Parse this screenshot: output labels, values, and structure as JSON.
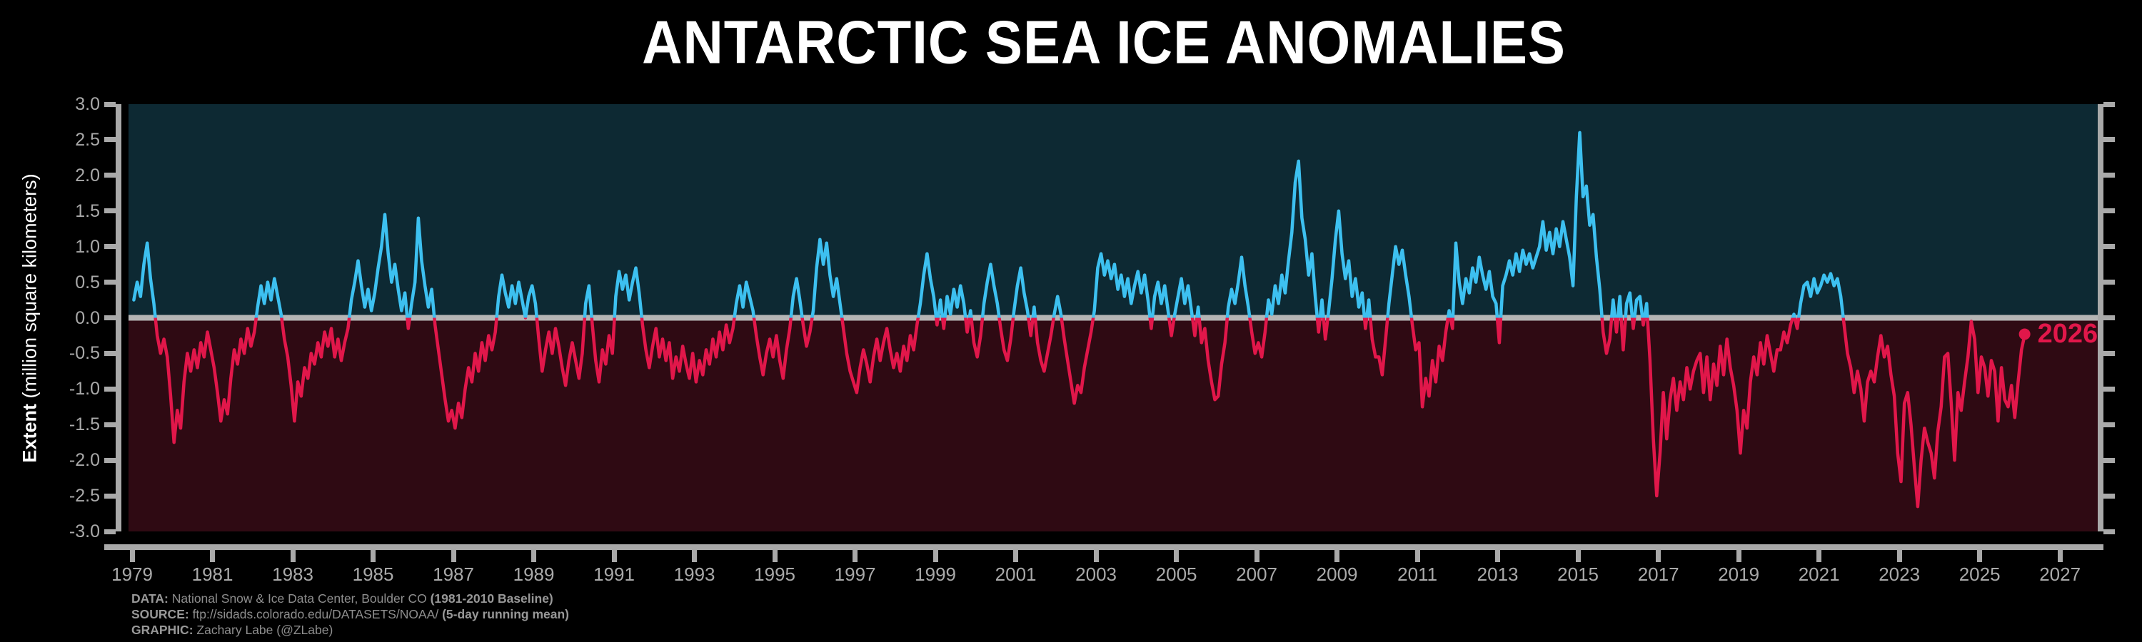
{
  "title": "ANTARCTIC SEA ICE ANOMALIES",
  "y_axis": {
    "label_bold": "Extent",
    "label_rest": " (million square kilometers)",
    "ticks": [
      "3.0",
      "2.5",
      "2.0",
      "1.5",
      "1.0",
      "0.5",
      "0.0",
      "-0.5",
      "-1.0",
      "-1.5",
      "-2.0",
      "-2.5",
      "-3.0"
    ]
  },
  "x_axis": {
    "ticks": [
      "1979",
      "1981",
      "1983",
      "1985",
      "1987",
      "1989",
      "1991",
      "1993",
      "1995",
      "1997",
      "1999",
      "2001",
      "2003",
      "2005",
      "2007",
      "2009",
      "2011",
      "2013",
      "2015",
      "2017",
      "2019",
      "2021",
      "2023",
      "2025",
      "2027"
    ]
  },
  "footer": {
    "lines": [
      {
        "label": "DATA:",
        "text": " National Snow & Ice Data Center, Boulder CO ",
        "bold_suffix": "(1981-2010 Baseline)"
      },
      {
        "label": "SOURCE:",
        "text": " ftp://sidads.colorado.edu/DATASETS/NOAA/ ",
        "bold_suffix": "(5-day running mean)"
      },
      {
        "label": "GRAPHIC:",
        "text": " Zachary Labe (@ZLabe)",
        "bold_suffix": ""
      }
    ]
  },
  "colors": {
    "background": "#000000",
    "positive_line": "#3DC0F0",
    "negative_line": "#E1174A",
    "positive_fill": "#0D2933",
    "negative_fill": "#2F0A13",
    "zero_line": "#B5B5B5",
    "axis": "#A9A9A9",
    "tick_label": "#A9A9A9",
    "title": "#FFFFFF",
    "footer_text": "#8E8E8E"
  },
  "chart_data": {
    "type": "line",
    "title": "ANTARCTIC SEA ICE ANOMALIES",
    "xlabel": "",
    "ylabel": "Extent (million square kilometers)",
    "ylim": [
      -3.0,
      3.0
    ],
    "xlim": [
      1978.91,
      2027.94
    ],
    "grid": false,
    "legend": "none",
    "series_name": "Antarctic sea ice extent anomaly, 5-day running mean (million sq km)",
    "x_unit": "decimal year, monthly estimates",
    "monthly_values_by_year": [
      {
        "year": 1979,
        "values": [
          0.25,
          0.5,
          0.3,
          0.75,
          1.05,
          0.55,
          0.2,
          -0.25,
          -0.5,
          -0.3,
          -0.55,
          -1.1
        ]
      },
      {
        "year": 1980,
        "values": [
          -1.75,
          -1.3,
          -1.55,
          -0.9,
          -0.5,
          -0.75,
          -0.45,
          -0.7,
          -0.35,
          -0.55,
          -0.2,
          -0.45
        ]
      },
      {
        "year": 1981,
        "values": [
          -0.7,
          -1.05,
          -1.45,
          -1.15,
          -1.35,
          -0.85,
          -0.45,
          -0.65,
          -0.3,
          -0.5,
          -0.15,
          -0.4
        ]
      },
      {
        "year": 1982,
        "values": [
          -0.2,
          0.15,
          0.45,
          0.2,
          0.5,
          0.25,
          0.55,
          0.3,
          0.05,
          -0.3,
          -0.55,
          -0.95
        ]
      },
      {
        "year": 1983,
        "values": [
          -1.45,
          -0.9,
          -1.1,
          -0.7,
          -0.85,
          -0.5,
          -0.65,
          -0.35,
          -0.55,
          -0.2,
          -0.4,
          -0.15
        ]
      },
      {
        "year": 1984,
        "values": [
          -0.55,
          -0.3,
          -0.6,
          -0.35,
          -0.15,
          0.25,
          0.5,
          0.8,
          0.45,
          0.15,
          0.4,
          0.1
        ]
      },
      {
        "year": 1985,
        "values": [
          0.35,
          0.7,
          1.0,
          1.45,
          0.9,
          0.5,
          0.75,
          0.4,
          0.1,
          0.35,
          -0.15,
          0.2
        ]
      },
      {
        "year": 1986,
        "values": [
          0.5,
          1.4,
          0.8,
          0.45,
          0.15,
          0.4,
          -0.1,
          -0.45,
          -0.8,
          -1.15,
          -1.45,
          -1.3
        ]
      },
      {
        "year": 1987,
        "values": [
          -1.55,
          -1.2,
          -1.4,
          -1.0,
          -0.7,
          -0.9,
          -0.5,
          -0.75,
          -0.35,
          -0.6,
          -0.25,
          -0.45
        ]
      },
      {
        "year": 1988,
        "values": [
          -0.2,
          0.3,
          0.6,
          0.35,
          0.15,
          0.45,
          0.2,
          0.5,
          0.25,
          0.0,
          0.3,
          0.45
        ]
      },
      {
        "year": 1989,
        "values": [
          0.2,
          -0.3,
          -0.75,
          -0.45,
          -0.2,
          -0.5,
          -0.15,
          -0.4,
          -0.7,
          -0.95,
          -0.6,
          -0.35
        ]
      },
      {
        "year": 1990,
        "values": [
          -0.6,
          -0.85,
          -0.5,
          0.2,
          0.45,
          -0.1,
          -0.6,
          -0.9,
          -0.45,
          -0.65,
          -0.25,
          -0.5
        ]
      },
      {
        "year": 1991,
        "values": [
          0.3,
          0.65,
          0.4,
          0.6,
          0.25,
          0.5,
          0.7,
          0.35,
          -0.1,
          -0.45,
          -0.7,
          -0.4
        ]
      },
      {
        "year": 1992,
        "values": [
          -0.15,
          -0.55,
          -0.3,
          -0.6,
          -0.35,
          -0.85,
          -0.55,
          -0.75,
          -0.4,
          -0.65,
          -0.85,
          -0.5
        ]
      },
      {
        "year": 1993,
        "values": [
          -0.9,
          -0.6,
          -0.8,
          -0.45,
          -0.65,
          -0.3,
          -0.55,
          -0.2,
          -0.45,
          -0.1,
          -0.35,
          -0.15
        ]
      },
      {
        "year": 1994,
        "values": [
          0.2,
          0.45,
          0.15,
          0.5,
          0.3,
          0.1,
          -0.25,
          -0.55,
          -0.8,
          -0.5,
          -0.3,
          -0.55
        ]
      },
      {
        "year": 1995,
        "values": [
          -0.25,
          -0.6,
          -0.85,
          -0.45,
          -0.15,
          0.3,
          0.55,
          0.25,
          -0.1,
          -0.4,
          -0.2,
          0.1
        ]
      },
      {
        "year": 1996,
        "values": [
          0.7,
          1.1,
          0.75,
          1.05,
          0.6,
          0.3,
          0.55,
          0.2,
          -0.15,
          -0.5,
          -0.75,
          -0.9
        ]
      },
      {
        "year": 1997,
        "values": [
          -1.05,
          -0.7,
          -0.45,
          -0.65,
          -0.9,
          -0.55,
          -0.3,
          -0.6,
          -0.35,
          -0.15,
          -0.45,
          -0.7
        ]
      },
      {
        "year": 1998,
        "values": [
          -0.5,
          -0.75,
          -0.4,
          -0.6,
          -0.25,
          -0.45,
          -0.1,
          0.2,
          0.6,
          0.9,
          0.55,
          0.3
        ]
      },
      {
        "year": 1999,
        "values": [
          -0.1,
          0.25,
          -0.15,
          0.3,
          0.05,
          0.4,
          0.15,
          0.45,
          0.2,
          -0.2,
          0.1,
          -0.35
        ]
      },
      {
        "year": 2000,
        "values": [
          -0.55,
          -0.25,
          0.2,
          0.5,
          0.75,
          0.45,
          0.2,
          -0.15,
          -0.45,
          -0.6,
          -0.3,
          0.1
        ]
      },
      {
        "year": 2001,
        "values": [
          0.45,
          0.7,
          0.35,
          0.1,
          -0.25,
          0.15,
          -0.35,
          -0.6,
          -0.75,
          -0.5,
          -0.25,
          0.05
        ]
      },
      {
        "year": 2002,
        "values": [
          0.3,
          0.05,
          -0.3,
          -0.6,
          -0.9,
          -1.2,
          -0.95,
          -1.05,
          -0.7,
          -0.45,
          -0.2,
          0.1
        ]
      },
      {
        "year": 2003,
        "values": [
          0.7,
          0.9,
          0.6,
          0.8,
          0.55,
          0.75,
          0.4,
          0.6,
          0.3,
          0.55,
          0.2,
          0.45
        ]
      },
      {
        "year": 2004,
        "values": [
          0.65,
          0.35,
          0.6,
          0.25,
          -0.15,
          0.3,
          0.5,
          0.2,
          0.45,
          0.1,
          -0.25,
          0.05
        ]
      },
      {
        "year": 2005,
        "values": [
          0.3,
          0.55,
          0.2,
          0.45,
          0.1,
          -0.25,
          0.15,
          -0.35,
          -0.15,
          -0.6,
          -0.9,
          -1.15
        ]
      },
      {
        "year": 2006,
        "values": [
          -1.1,
          -0.65,
          -0.35,
          0.15,
          0.4,
          0.2,
          0.5,
          0.85,
          0.45,
          0.15,
          -0.2,
          -0.5
        ]
      },
      {
        "year": 2007,
        "values": [
          -0.35,
          -0.55,
          -0.2,
          0.25,
          0.05,
          0.45,
          0.2,
          0.6,
          0.35,
          0.8,
          1.2,
          1.9
        ]
      },
      {
        "year": 2008,
        "values": [
          2.2,
          1.4,
          1.1,
          0.6,
          0.9,
          0.3,
          -0.2,
          0.25,
          -0.3,
          0.1,
          0.55,
          1.1
        ]
      },
      {
        "year": 2009,
        "values": [
          1.5,
          0.9,
          0.55,
          0.8,
          0.3,
          0.55,
          0.15,
          0.35,
          -0.15,
          0.25,
          -0.3,
          -0.55
        ]
      },
      {
        "year": 2010,
        "values": [
          -0.55,
          -0.8,
          -0.3,
          0.2,
          0.6,
          1.0,
          0.75,
          0.95,
          0.6,
          0.3,
          -0.1,
          -0.45
        ]
      },
      {
        "year": 2011,
        "values": [
          -0.35,
          -1.25,
          -0.85,
          -1.1,
          -0.6,
          -0.9,
          -0.4,
          -0.6,
          -0.2,
          0.1,
          -0.15,
          1.05
        ]
      },
      {
        "year": 2012,
        "values": [
          0.5,
          0.2,
          0.55,
          0.35,
          0.7,
          0.5,
          0.85,
          0.6,
          0.4,
          0.65,
          0.3,
          0.2
        ]
      },
      {
        "year": 2013,
        "values": [
          -0.35,
          0.45,
          0.6,
          0.8,
          0.6,
          0.9,
          0.65,
          0.95,
          0.75,
          0.9,
          0.7,
          0.85
        ]
      },
      {
        "year": 2014,
        "values": [
          1.0,
          1.35,
          0.95,
          1.2,
          0.9,
          1.25,
          1.0,
          1.35,
          1.1,
          0.85,
          0.45,
          1.7
        ]
      },
      {
        "year": 2015,
        "values": [
          2.6,
          1.7,
          1.85,
          1.3,
          1.45,
          0.85,
          0.4,
          -0.2,
          -0.5,
          -0.3,
          0.25,
          -0.2
        ]
      },
      {
        "year": 2016,
        "values": [
          0.3,
          -0.45,
          0.2,
          0.35,
          -0.15,
          0.25,
          0.3,
          -0.1,
          0.2,
          -0.6,
          -1.7,
          -2.5
        ]
      },
      {
        "year": 2017,
        "values": [
          -1.9,
          -1.05,
          -1.7,
          -1.15,
          -0.85,
          -1.3,
          -0.9,
          -1.15,
          -0.7,
          -1.0,
          -0.75,
          -0.6
        ]
      },
      {
        "year": 2018,
        "values": [
          -0.5,
          -1.05,
          -0.55,
          -1.15,
          -0.65,
          -0.95,
          -0.4,
          -0.8,
          -0.3,
          -0.7,
          -0.95,
          -1.3
        ]
      },
      {
        "year": 2019,
        "values": [
          -1.9,
          -1.3,
          -1.55,
          -0.9,
          -0.55,
          -0.8,
          -0.35,
          -0.65,
          -0.25,
          -0.5,
          -0.75,
          -0.45
        ]
      },
      {
        "year": 2020,
        "values": [
          -0.45,
          -0.2,
          -0.35,
          -0.1,
          0.05,
          -0.15,
          0.2,
          0.45,
          0.5,
          0.3,
          0.55,
          0.35
        ]
      },
      {
        "year": 2021,
        "values": [
          0.45,
          0.6,
          0.5,
          0.62,
          0.45,
          0.55,
          0.3,
          -0.1,
          -0.5,
          -0.7,
          -1.05,
          -0.75
        ]
      },
      {
        "year": 2022,
        "values": [
          -1.0,
          -1.45,
          -0.9,
          -0.75,
          -0.9,
          -0.55,
          -0.25,
          -0.55,
          -0.4,
          -0.8,
          -1.1,
          -1.9
        ]
      },
      {
        "year": 2023,
        "values": [
          -2.3,
          -1.2,
          -1.05,
          -1.5,
          -2.1,
          -2.65,
          -2.0,
          -1.55,
          -1.75,
          -1.9,
          -2.25,
          -1.6
        ]
      },
      {
        "year": 2024,
        "values": [
          -1.25,
          -0.55,
          -0.5,
          -1.2,
          -2.0,
          -1.05,
          -1.3,
          -0.9,
          -0.55,
          -0.05,
          -0.3,
          -1.05
        ]
      },
      {
        "year": 2025,
        "values": [
          -0.55,
          -0.7,
          -1.1,
          -0.6,
          -0.75,
          -1.45,
          -0.7,
          -1.15,
          -1.25,
          -0.95,
          -1.4,
          -0.9
        ]
      },
      {
        "year": 2026,
        "values": [
          -0.45,
          -0.23
        ]
      }
    ],
    "end_point": {
      "x": 2026.12,
      "y": -0.23,
      "label": "2026"
    }
  }
}
